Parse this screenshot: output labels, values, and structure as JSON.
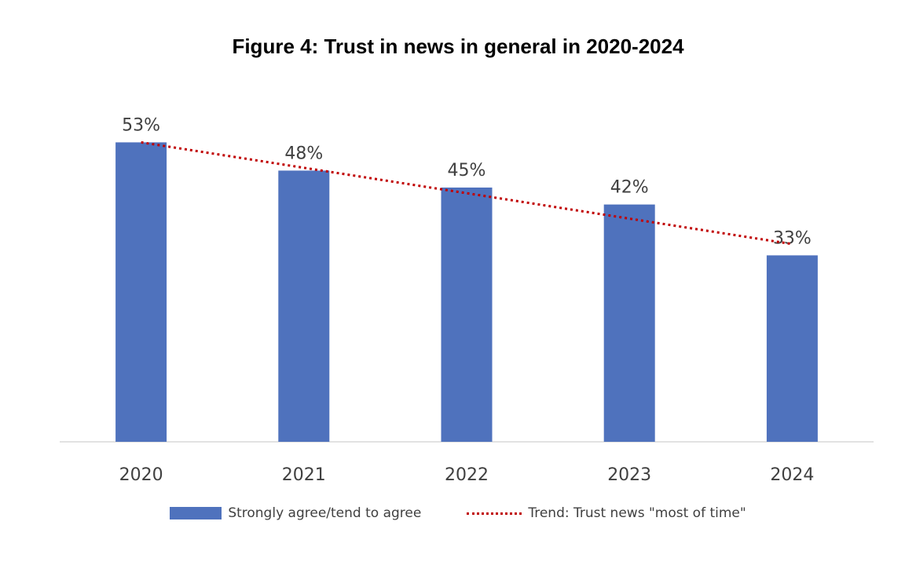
{
  "chart_data": {
    "type": "bar",
    "title": "Figure 4: Trust in news in general in 2020-2024",
    "categories": [
      "2020",
      "2021",
      "2022",
      "2023",
      "2024"
    ],
    "series": [
      {
        "name": "Strongly agree/tend to agree",
        "values": [
          53,
          48,
          45,
          42,
          33
        ],
        "labels": [
          "53%",
          "48%",
          "45%",
          "42%",
          "33%"
        ],
        "color": "#4f72bd"
      }
    ],
    "trend": {
      "name": "Trend: Trust news \"most of time\"",
      "type": "line",
      "style": "dotted",
      "color": "#c00000",
      "values": [
        53,
        48.5,
        44,
        39.5,
        35
      ]
    },
    "ylim": [
      0,
      60
    ],
    "xlabel": "",
    "ylabel": "",
    "grid": false,
    "legend_position": "bottom"
  }
}
